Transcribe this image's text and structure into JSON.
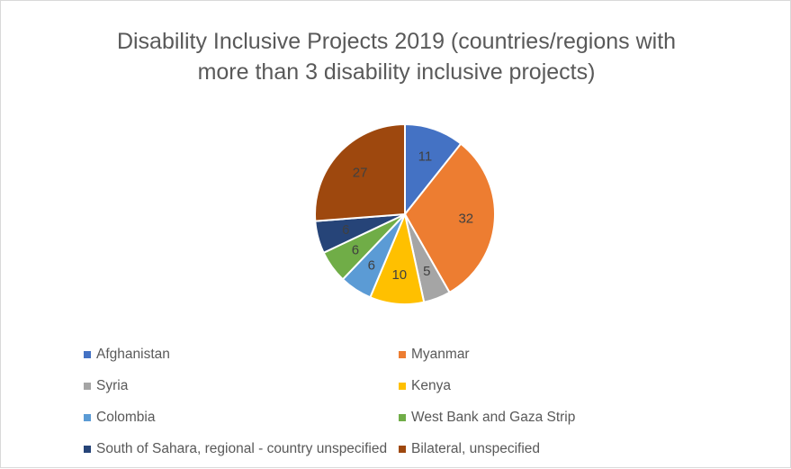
{
  "chart_data": {
    "type": "pie",
    "title_lines": [
      "Disability Inclusive Projects 2019 (countries/regions with",
      "more than 3 disability inclusive projects)"
    ],
    "legend_position": "bottom",
    "slices": [
      {
        "name": "Afghanistan",
        "value": 11,
        "color": "#4472C4",
        "label_color": "#404040"
      },
      {
        "name": "Myanmar",
        "value": 32,
        "color": "#ED7D31",
        "label_color": "#404040"
      },
      {
        "name": "Syria",
        "value": 5,
        "color": "#A5A5A5",
        "label_color": "#404040"
      },
      {
        "name": "Kenya",
        "value": 10,
        "color": "#FFC000",
        "label_color": "#404040"
      },
      {
        "name": "Colombia",
        "value": 6,
        "color": "#5B9BD5",
        "label_color": "#404040"
      },
      {
        "name": "West Bank and Gaza Strip",
        "value": 6,
        "color": "#70AD47",
        "label_color": "#404040"
      },
      {
        "name": "South of Sahara, regional - country unspecified",
        "value": 6,
        "color": "#264478",
        "label_color": "#404040"
      },
      {
        "name": "Bilateral, unspecified",
        "value": 27,
        "color": "#9E480E",
        "label_color": "#404040"
      }
    ]
  }
}
